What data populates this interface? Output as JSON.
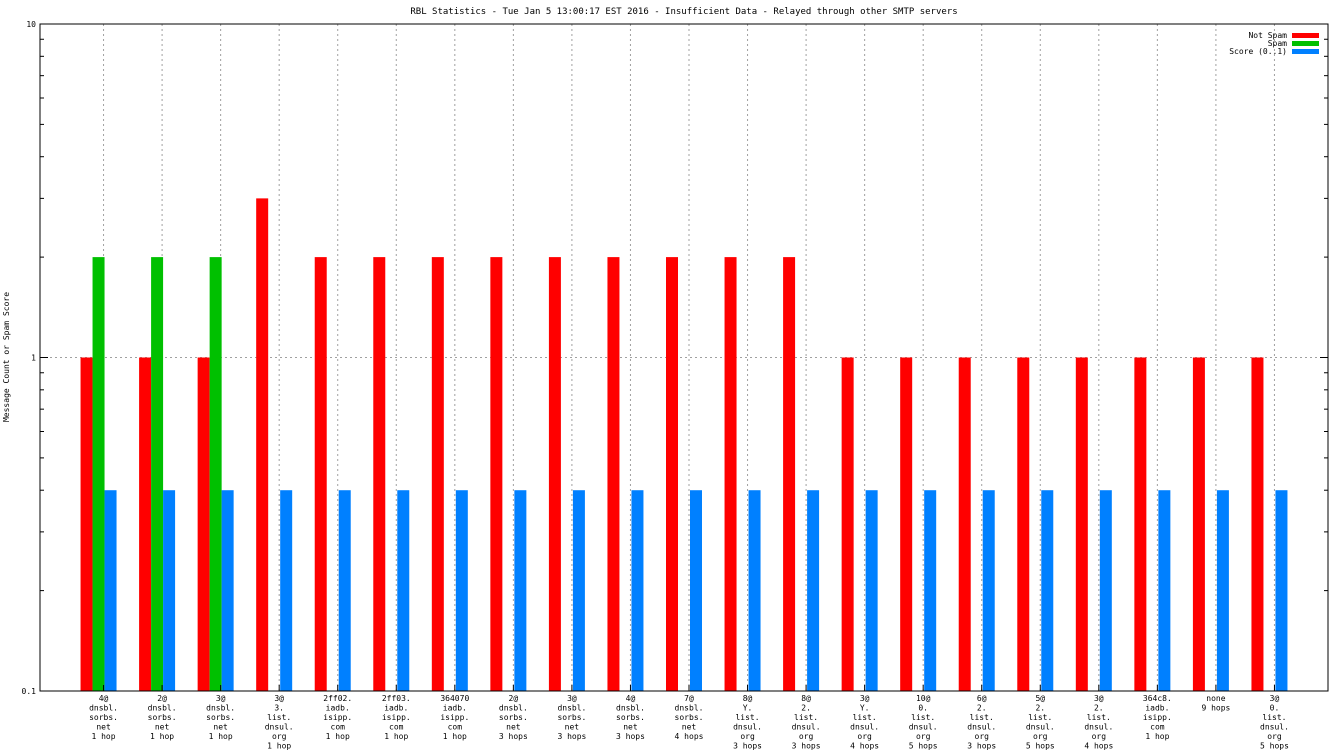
{
  "chart_data": {
    "type": "bar",
    "title": "RBL Statistics - Tue Jan  5 13:00:17 EST 2016 - Insufficient Data - Relayed through other SMTP servers",
    "xlabel": "",
    "ylabel": "Message Count or Spam Score",
    "yscale": "log",
    "ylim": [
      0.1,
      10
    ],
    "yticks": [
      "0.1",
      "1",
      "10"
    ],
    "grid": true,
    "legend_position": "top-right",
    "categories": [
      [
        "4@",
        "dnsbl.",
        "sorbs.",
        "net",
        "1 hop"
      ],
      [
        "2@",
        "dnsbl.",
        "sorbs.",
        "net",
        "1 hop"
      ],
      [
        "3@",
        "dnsbl.",
        "sorbs.",
        "net",
        "1 hop"
      ],
      [
        "3@",
        "3.",
        "list.",
        "dnsul.",
        "org",
        "1 hop"
      ],
      [
        "2ff02.",
        "iadb.",
        "isipp.",
        "com",
        "1 hop"
      ],
      [
        "2ff03.",
        "iadb.",
        "isipp.",
        "com",
        "1 hop"
      ],
      [
        "364070",
        "iadb.",
        "isipp.",
        "com",
        "1 hop"
      ],
      [
        "2@",
        "dnsbl.",
        "sorbs.",
        "net",
        "3 hops"
      ],
      [
        "3@",
        "dnsbl.",
        "sorbs.",
        "net",
        "3 hops"
      ],
      [
        "4@",
        "dnsbl.",
        "sorbs.",
        "net",
        "3 hops"
      ],
      [
        "7@",
        "dnsbl.",
        "sorbs.",
        "net",
        "4 hops"
      ],
      [
        "8@",
        "Y.",
        "list.",
        "dnsul.",
        "org",
        "3 hops"
      ],
      [
        "8@",
        "2.",
        "list.",
        "dnsul.",
        "org",
        "3 hops"
      ],
      [
        "3@",
        "Y.",
        "list.",
        "dnsul.",
        "org",
        "4 hops"
      ],
      [
        "10@",
        "0.",
        "list.",
        "dnsul.",
        "org",
        "5 hops"
      ],
      [
        "6@",
        "2.",
        "list.",
        "dnsul.",
        "org",
        "3 hops"
      ],
      [
        "5@",
        "2.",
        "list.",
        "dnsul.",
        "org",
        "5 hops"
      ],
      [
        "3@",
        "2.",
        "list.",
        "dnsul.",
        "org",
        "4 hops"
      ],
      [
        "364c8.",
        "iadb.",
        "isipp.",
        "com",
        "1 hop"
      ],
      [
        "none",
        "9 hops"
      ],
      [
        "3@",
        "0.",
        "list.",
        "dnsul.",
        "org",
        "5 hops"
      ]
    ],
    "series": [
      {
        "name": "Not Spam",
        "color": "#ff0000",
        "values": [
          1,
          1,
          1,
          3,
          2,
          2,
          2,
          2,
          2,
          2,
          2,
          2,
          2,
          1,
          1,
          1,
          1,
          1,
          1,
          1,
          1
        ]
      },
      {
        "name": "Spam",
        "color": "#00c000",
        "values": [
          2,
          2,
          2,
          0,
          0,
          0,
          0,
          0,
          0,
          0,
          0,
          0,
          0,
          0,
          0,
          0,
          0,
          0,
          0,
          0,
          0
        ]
      },
      {
        "name": "Score (0..1)",
        "color": "#0080ff",
        "values": [
          0.4,
          0.4,
          0.4,
          0.4,
          0.4,
          0.4,
          0.4,
          0.4,
          0.4,
          0.4,
          0.4,
          0.4,
          0.4,
          0.4,
          0.4,
          0.4,
          0.4,
          0.4,
          0.4,
          0.4,
          0.4
        ]
      }
    ]
  }
}
